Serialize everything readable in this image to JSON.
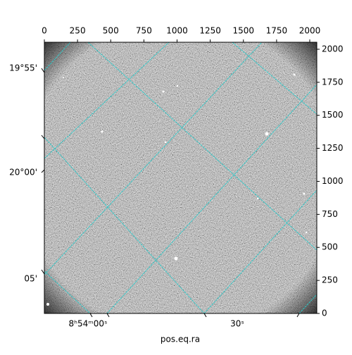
{
  "chart_data": {
    "type": "image",
    "xlim": [
      0,
      2053
    ],
    "xticks": [
      0,
      250,
      500,
      750,
      1000,
      1250,
      1500,
      1750,
      2000
    ],
    "ylim": [
      0,
      2053
    ],
    "yticks": [
      0,
      250,
      500,
      750,
      1000,
      1250,
      1500,
      1750,
      2000
    ],
    "dec_labels": [
      "19°55'",
      "20°00'",
      "05'"
    ],
    "ra_labels": [
      "8ʰ54ᵐ00ˢ",
      "30ˢ"
    ],
    "xlabel": "pos.eq.ra",
    "grid": true,
    "grid_color": "#2ec8c8"
  }
}
